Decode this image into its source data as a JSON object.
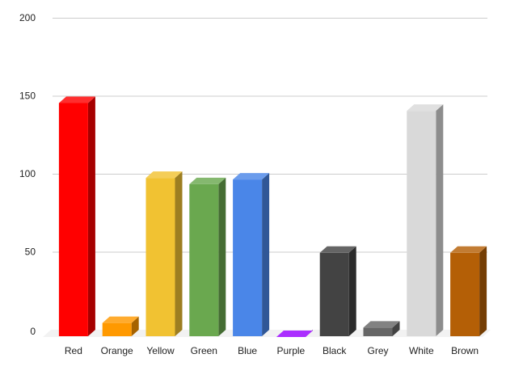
{
  "chart_data": {
    "type": "bar",
    "title": "",
    "xlabel": "",
    "ylabel": "",
    "categories": [
      "Red",
      "Orange",
      "Yellow",
      "Green",
      "Blue",
      "Purple",
      "Black",
      "Grey",
      "White",
      "Brown"
    ],
    "values": [
      150,
      9,
      102,
      98,
      101,
      0,
      54,
      6,
      145,
      54
    ],
    "ylim": [
      0,
      200
    ],
    "yticks": [
      "0",
      "50",
      "100",
      "150",
      "200"
    ],
    "grid": true,
    "legend": "none",
    "style": "3d",
    "colors": [
      "#ff0000",
      "#ff9900",
      "#f1c232",
      "#6aa84f",
      "#4a86e8",
      "#9900ff",
      "#434343",
      "#666666",
      "#d9d9d9",
      "#b45f06"
    ]
  }
}
